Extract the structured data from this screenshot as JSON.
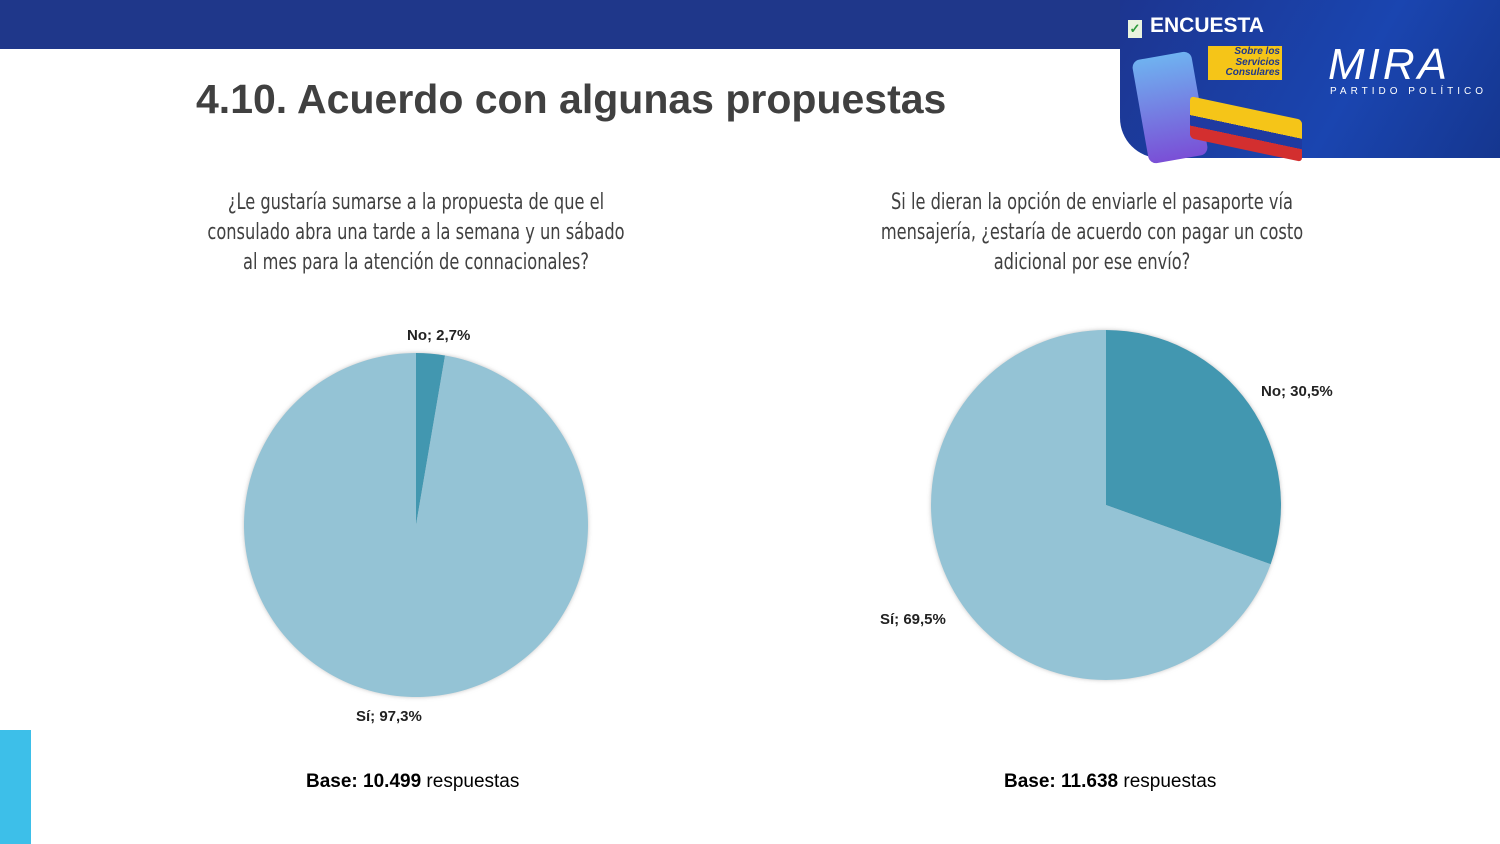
{
  "header": {
    "title": "4.10. Acuerdo con algunas propuestas",
    "badge": "ENCUESTA",
    "badge_sub": "Sobre los Servicios Consulares",
    "logo": "MIRA",
    "logo_sub": "PARTIDO POLÍTICO"
  },
  "colors": {
    "banner": "#1f378a",
    "si": "#94c3d5",
    "no": "#4297b0",
    "accent": "#3dbfe9"
  },
  "chart_data": [
    {
      "type": "pie",
      "title": "¿Le gustaría sumarse a la propuesta de que el consulado abra una tarde a la semana y un sábado al mes para la atención de connacionales?",
      "slices": [
        {
          "label": "No",
          "value": 2.7,
          "text": "No; 2,7%"
        },
        {
          "label": "Sí",
          "value": 97.3,
          "text": "Sí; 97,3%"
        }
      ],
      "base_label": "Base: 10.499",
      "base_suffix": " respuestas"
    },
    {
      "type": "pie",
      "title": "Si le dieran la opción de enviarle el pasaporte vía mensajería, ¿estaría de acuerdo con pagar un costo adicional por ese envío?",
      "slices": [
        {
          "label": "No",
          "value": 30.5,
          "text": "No; 30,5%"
        },
        {
          "label": "Sí",
          "value": 69.5,
          "text": "Sí; 69,5%"
        }
      ],
      "base_label": "Base: 11.638",
      "base_suffix": " respuestas"
    }
  ]
}
